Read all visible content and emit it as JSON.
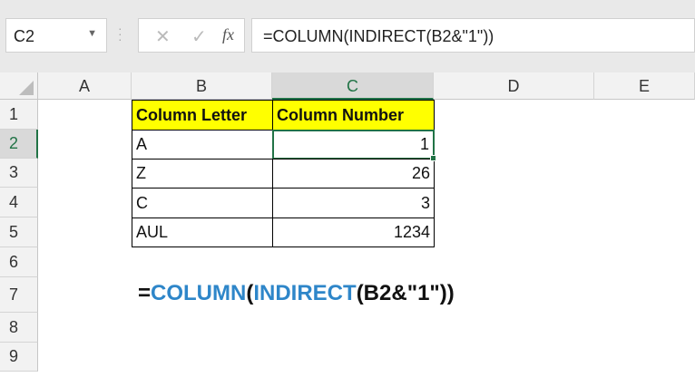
{
  "name_box": "C2",
  "formula_bar": {
    "cancel_icon": "✕",
    "enter_icon": "✓",
    "fx_label": "fx",
    "formula": "=COLUMN(INDIRECT(B2&\"1\"))"
  },
  "columns": [
    "A",
    "B",
    "C",
    "D",
    "E"
  ],
  "rows": [
    "1",
    "2",
    "3",
    "4",
    "5",
    "6",
    "7",
    "8",
    "9"
  ],
  "table": {
    "headers": [
      "Column Letter",
      "Column Number"
    ],
    "rows": [
      [
        "A",
        "1"
      ],
      [
        "Z",
        "26"
      ],
      [
        "C",
        "3"
      ],
      [
        "AUL",
        "1234"
      ]
    ]
  },
  "annotation": {
    "eq": "=",
    "fn1": "COLUMN",
    "p1": "(",
    "fn2": "INDIRECT",
    "rest": "(B2&\"1\"))"
  },
  "colors": {
    "header_fill": "#ffff00",
    "selection": "#217346",
    "function_blue": "#2e86c9"
  }
}
